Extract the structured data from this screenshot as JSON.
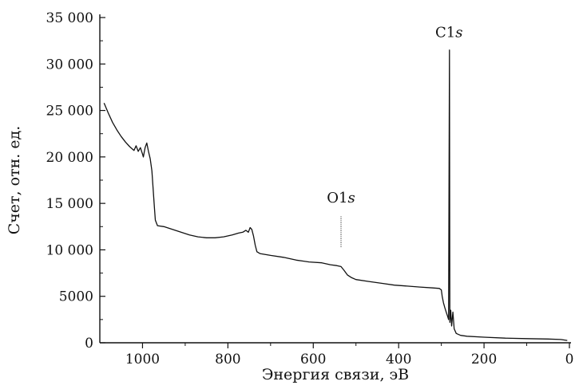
{
  "chart_data": {
    "type": "line",
    "xlabel": "Энергия связи, эВ",
    "ylabel": "Счет, отн. ед.",
    "xlim": [
      1100,
      0
    ],
    "ylim": [
      0,
      35000
    ],
    "x_reversed": true,
    "grid": false,
    "x_ticks": [
      {
        "value": 1000,
        "label": "1000"
      },
      {
        "value": 800,
        "label": "800"
      },
      {
        "value": 600,
        "label": "600"
      },
      {
        "value": 400,
        "label": "400"
      },
      {
        "value": 200,
        "label": "200"
      },
      {
        "value": 0,
        "label": "0"
      }
    ],
    "y_ticks": [
      {
        "value": 0,
        "label": "0"
      },
      {
        "value": 5000,
        "label": "5000"
      },
      {
        "value": 10000,
        "label": "10 000"
      },
      {
        "value": 15000,
        "label": "15 000"
      },
      {
        "value": 20000,
        "label": "20 000"
      },
      {
        "value": 25000,
        "label": "25 000"
      },
      {
        "value": 30000,
        "label": "30 000"
      },
      {
        "value": 35000,
        "label": "35 000"
      }
    ],
    "series": [
      {
        "color": "#111111",
        "points": [
          [
            1090,
            25800
          ],
          [
            1080,
            24700
          ],
          [
            1070,
            23700
          ],
          [
            1060,
            22900
          ],
          [
            1050,
            22200
          ],
          [
            1040,
            21600
          ],
          [
            1030,
            21100
          ],
          [
            1020,
            20700
          ],
          [
            1015,
            21200
          ],
          [
            1010,
            20600
          ],
          [
            1005,
            21000
          ],
          [
            1000,
            20300
          ],
          [
            998,
            20000
          ],
          [
            994,
            21000
          ],
          [
            990,
            21500
          ],
          [
            986,
            20600
          ],
          [
            982,
            19800
          ],
          [
            978,
            18500
          ],
          [
            975,
            16500
          ],
          [
            972,
            14500
          ],
          [
            970,
            13200
          ],
          [
            965,
            12600
          ],
          [
            950,
            12500
          ],
          [
            930,
            12200
          ],
          [
            910,
            11900
          ],
          [
            890,
            11600
          ],
          [
            870,
            11400
          ],
          [
            850,
            11300
          ],
          [
            830,
            11300
          ],
          [
            810,
            11400
          ],
          [
            790,
            11600
          ],
          [
            775,
            11800
          ],
          [
            765,
            11900
          ],
          [
            758,
            12100
          ],
          [
            752,
            11900
          ],
          [
            748,
            12400
          ],
          [
            744,
            12200
          ],
          [
            740,
            11500
          ],
          [
            736,
            10500
          ],
          [
            732,
            9800
          ],
          [
            725,
            9600
          ],
          [
            700,
            9400
          ],
          [
            670,
            9200
          ],
          [
            640,
            8900
          ],
          [
            610,
            8700
          ],
          [
            580,
            8600
          ],
          [
            560,
            8400
          ],
          [
            545,
            8300
          ],
          [
            535,
            8200
          ],
          [
            528,
            7800
          ],
          [
            520,
            7300
          ],
          [
            510,
            7000
          ],
          [
            500,
            6800
          ],
          [
            470,
            6600
          ],
          [
            440,
            6400
          ],
          [
            410,
            6200
          ],
          [
            380,
            6100
          ],
          [
            350,
            6000
          ],
          [
            320,
            5900
          ],
          [
            305,
            5850
          ],
          [
            300,
            5700
          ],
          [
            298,
            5000
          ],
          [
            295,
            4300
          ],
          [
            292,
            3800
          ],
          [
            288,
            3200
          ],
          [
            285,
            2800
          ],
          [
            283,
            2500
          ],
          [
            281,
            31500
          ],
          [
            280,
            2200
          ],
          [
            278,
            3500
          ],
          [
            276,
            1800
          ],
          [
            273,
            3300
          ],
          [
            270,
            1500
          ],
          [
            265,
            1000
          ],
          [
            255,
            800
          ],
          [
            240,
            700
          ],
          [
            200,
            600
          ],
          [
            150,
            500
          ],
          [
            100,
            450
          ],
          [
            50,
            400
          ],
          [
            20,
            350
          ],
          [
            5,
            250
          ]
        ]
      }
    ],
    "annotations": [
      {
        "main": "O1",
        "ital": "s",
        "x": 535,
        "y": 15100,
        "peak_top": 13600,
        "peak_base": 10300
      },
      {
        "main": "C1",
        "ital": "s",
        "x": 282,
        "y": 32900
      }
    ]
  }
}
